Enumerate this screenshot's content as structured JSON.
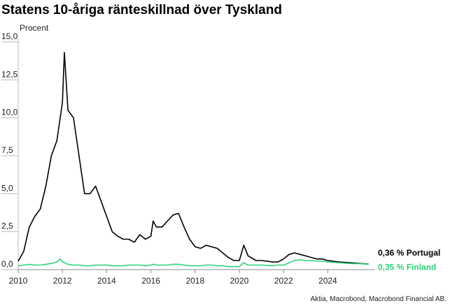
{
  "chart_data": {
    "type": "line",
    "title": "Statens 10-åriga ränteskillnad över Tyskland",
    "y_label": "Procent",
    "source": "Aktia, Macrobond, Macrobond Financial AB.",
    "x": [
      2010.0,
      2010.25,
      2010.5,
      2010.75,
      2011.0,
      2011.25,
      2011.5,
      2011.75,
      2011.9,
      2012.0,
      2012.09,
      2012.25,
      2012.5,
      2012.75,
      2013.0,
      2013.25,
      2013.5,
      2013.75,
      2014.0,
      2014.25,
      2014.5,
      2014.75,
      2015.0,
      2015.25,
      2015.5,
      2015.75,
      2016.0,
      2016.1,
      2016.25,
      2016.5,
      2016.75,
      2017.0,
      2017.25,
      2017.5,
      2017.75,
      2018.0,
      2018.25,
      2018.5,
      2018.75,
      2019.0,
      2019.25,
      2019.5,
      2019.75,
      2020.0,
      2020.2,
      2020.4,
      2020.75,
      2021.0,
      2021.5,
      2021.75,
      2022.0,
      2022.25,
      2022.5,
      2022.75,
      2023.0,
      2023.25,
      2023.5,
      2023.75,
      2024.0,
      2024.5,
      2025.0,
      2025.5,
      2025.85
    ],
    "series": [
      {
        "name": "0,36 % Portugal",
        "color": "#000000",
        "values": [
          0.55,
          1.2,
          2.8,
          3.5,
          4.0,
          5.5,
          7.5,
          8.5,
          10.0,
          11.0,
          14.3,
          10.5,
          10.0,
          7.5,
          5.0,
          5.0,
          5.5,
          4.5,
          3.5,
          2.5,
          2.2,
          2.0,
          2.0,
          1.8,
          2.3,
          2.0,
          2.2,
          3.2,
          2.8,
          2.8,
          3.2,
          3.6,
          3.7,
          2.8,
          2.0,
          1.5,
          1.4,
          1.6,
          1.5,
          1.4,
          1.1,
          0.8,
          0.6,
          0.6,
          1.6,
          0.9,
          0.6,
          0.6,
          0.5,
          0.5,
          0.7,
          1.0,
          1.1,
          1.0,
          0.9,
          0.8,
          0.7,
          0.7,
          0.6,
          0.5,
          0.45,
          0.4,
          0.36
        ]
      },
      {
        "name": "0,35 % Finland",
        "color": "#2fd27a",
        "values": [
          0.25,
          0.3,
          0.35,
          0.3,
          0.3,
          0.35,
          0.4,
          0.5,
          0.7,
          0.5,
          0.45,
          0.35,
          0.3,
          0.3,
          0.25,
          0.25,
          0.3,
          0.3,
          0.3,
          0.25,
          0.25,
          0.25,
          0.3,
          0.3,
          0.3,
          0.25,
          0.3,
          0.35,
          0.3,
          0.3,
          0.3,
          0.35,
          0.35,
          0.3,
          0.25,
          0.25,
          0.25,
          0.3,
          0.3,
          0.25,
          0.25,
          0.2,
          0.2,
          0.2,
          0.45,
          0.3,
          0.3,
          0.3,
          0.25,
          0.3,
          0.3,
          0.45,
          0.6,
          0.65,
          0.6,
          0.6,
          0.55,
          0.55,
          0.5,
          0.45,
          0.4,
          0.38,
          0.35
        ]
      }
    ],
    "xlim": [
      2010,
      2025.95
    ],
    "xticks": [
      2010,
      2012,
      2014,
      2016,
      2018,
      2020,
      2022,
      2024
    ],
    "ylim": [
      0,
      15
    ],
    "yticks": [
      {
        "value": 0,
        "label": "0,0"
      },
      {
        "value": 2.5,
        "label": "2,5"
      },
      {
        "value": 5,
        "label": "5,0"
      },
      {
        "value": 7.5,
        "label": "7,5"
      },
      {
        "value": 10,
        "label": "10,0"
      },
      {
        "value": 12.5,
        "label": "12,5"
      },
      {
        "value": 15,
        "label": "15,0"
      }
    ]
  }
}
